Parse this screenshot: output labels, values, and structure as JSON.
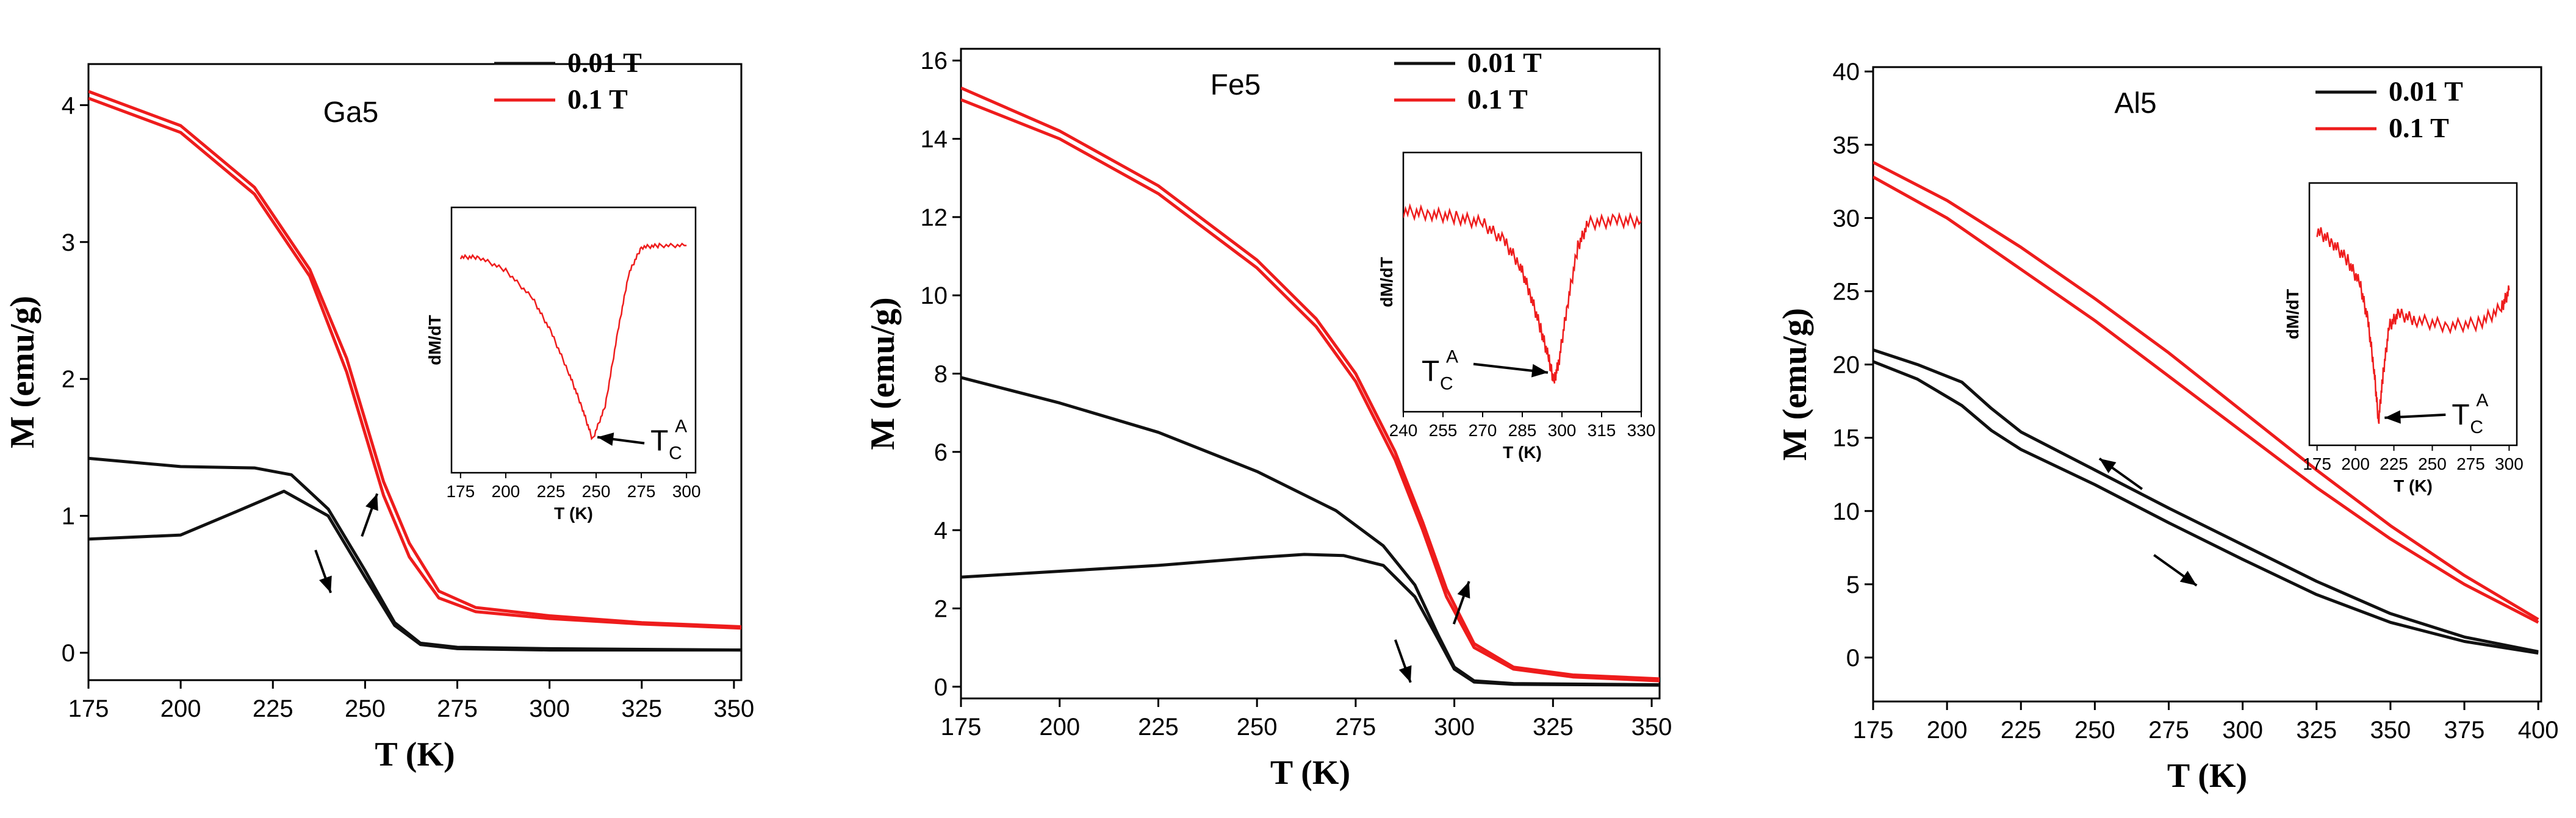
{
  "colors": {
    "low_field": "#111111",
    "high_field": "#ee1c1c",
    "axis": "#000000"
  },
  "chart_data": [
    {
      "type": "line",
      "title": "Ga5",
      "xlabel": "T (K)",
      "ylabel": "M (emu/g)",
      "xlim": [
        175,
        352
      ],
      "ylim": [
        -0.2,
        4.3
      ],
      "xticks": [
        175,
        200,
        225,
        250,
        275,
        300,
        325,
        350
      ],
      "yticks": [
        0,
        1,
        2,
        3,
        4
      ],
      "legend": {
        "position": "top-right",
        "entries": [
          "0.01 T",
          "0.1 T"
        ]
      },
      "series": [
        {
          "name": "0.1 T",
          "field": "high",
          "x": [
            175,
            200,
            220,
            235,
            245,
            255,
            262,
            270,
            280,
            300,
            325,
            352
          ],
          "y": [
            4.1,
            3.85,
            3.4,
            2.8,
            2.15,
            1.25,
            0.8,
            0.45,
            0.33,
            0.27,
            0.22,
            0.19
          ]
        },
        {
          "name": "0.1 T",
          "field": "high",
          "x": [
            175,
            200,
            220,
            235,
            245,
            255,
            262,
            270,
            280,
            300,
            325,
            352
          ],
          "y": [
            4.05,
            3.8,
            3.35,
            2.75,
            2.05,
            1.15,
            0.7,
            0.4,
            0.3,
            0.25,
            0.21,
            0.18
          ]
        },
        {
          "name": "0.01 T",
          "field": "low",
          "x": [
            175,
            200,
            220,
            230,
            240,
            250,
            258,
            265,
            275,
            300,
            352
          ],
          "y": [
            1.42,
            1.36,
            1.35,
            1.3,
            1.05,
            0.6,
            0.22,
            0.07,
            0.04,
            0.03,
            0.02
          ]
        },
        {
          "name": "0.01 T",
          "field": "low",
          "x": [
            175,
            200,
            215,
            228,
            240,
            250,
            258,
            265,
            275,
            300,
            352
          ],
          "y": [
            0.83,
            0.86,
            1.03,
            1.18,
            1.0,
            0.55,
            0.2,
            0.06,
            0.03,
            0.02,
            0.02
          ]
        }
      ],
      "annotations": [
        {
          "type": "arrow",
          "direction": "up",
          "at_x": 245,
          "at_y": 0.85
        },
        {
          "type": "arrow",
          "direction": "down",
          "at_x": 244,
          "at_y": 0.75
        }
      ],
      "inset": {
        "ylabel": "dM/dT",
        "xlabel": "T (K)",
        "xlim": [
          170,
          305
        ],
        "ylim": [
          -1.4,
          0.2
        ],
        "xticks": [
          175,
          200,
          225,
          250,
          275,
          300
        ],
        "marker_label": "T",
        "marker_sub": "C",
        "marker_sup": "A",
        "series": [
          {
            "name": "dM/dT",
            "x": [
              175,
              185,
              200,
              215,
              225,
              235,
              242,
              248,
              255,
              262,
              268,
              275,
              285,
              300
            ],
            "y": [
              -0.1,
              -0.1,
              -0.18,
              -0.35,
              -0.55,
              -0.8,
              -1.0,
              -1.2,
              -1.0,
              -0.55,
              -0.2,
              -0.04,
              -0.03,
              -0.03
            ]
          }
        ]
      }
    },
    {
      "type": "line",
      "title": "Fe5",
      "xlabel": "T (K)",
      "ylabel": "M (emu/g)",
      "xlim": [
        175,
        352
      ],
      "ylim": [
        -0.3,
        16.3
      ],
      "xticks": [
        175,
        200,
        225,
        250,
        275,
        300,
        325,
        350
      ],
      "yticks": [
        0,
        2,
        4,
        6,
        8,
        10,
        12,
        14,
        16
      ],
      "legend": {
        "position": "top-right",
        "entries": [
          "0.01 T",
          "0.1 T"
        ]
      },
      "series": [
        {
          "name": "0.1 T",
          "field": "high",
          "x": [
            175,
            200,
            225,
            250,
            265,
            275,
            285,
            292,
            298,
            305,
            315,
            330,
            352
          ],
          "y": [
            15.3,
            14.2,
            12.8,
            10.9,
            9.4,
            8.0,
            6.0,
            4.2,
            2.5,
            1.1,
            0.5,
            0.3,
            0.2
          ]
        },
        {
          "name": "0.1 T",
          "field": "high",
          "x": [
            175,
            200,
            225,
            250,
            265,
            275,
            285,
            292,
            298,
            305,
            315,
            330,
            352
          ],
          "y": [
            15.0,
            14.0,
            12.6,
            10.7,
            9.2,
            7.8,
            5.8,
            4.0,
            2.3,
            1.0,
            0.45,
            0.25,
            0.15
          ]
        },
        {
          "name": "0.01 T",
          "field": "low",
          "x": [
            175,
            200,
            225,
            250,
            270,
            282,
            290,
            296,
            300,
            305,
            315,
            352
          ],
          "y": [
            7.9,
            7.25,
            6.5,
            5.5,
            4.5,
            3.6,
            2.6,
            1.3,
            0.5,
            0.15,
            0.08,
            0.05
          ]
        },
        {
          "name": "0.01 T",
          "field": "low",
          "x": [
            175,
            200,
            225,
            250,
            262,
            272,
            282,
            290,
            296,
            300,
            305,
            315,
            352
          ],
          "y": [
            2.8,
            2.95,
            3.1,
            3.3,
            3.38,
            3.35,
            3.1,
            2.3,
            1.2,
            0.45,
            0.12,
            0.06,
            0.04
          ]
        }
      ],
      "annotations": [
        {
          "type": "arrow",
          "direction": "up",
          "at_x": 296,
          "at_y": 1.6
        },
        {
          "type": "arrow",
          "direction": "down",
          "at_x": 292,
          "at_y": 1.2
        }
      ],
      "inset": {
        "ylabel": "dM/dT",
        "xlabel": "T (K)",
        "xlim": [
          240,
          330
        ],
        "ylim": [
          -1.6,
          0.6
        ],
        "xticks": [
          240,
          255,
          270,
          285,
          300,
          315,
          330
        ],
        "marker_label": "T",
        "marker_sub": "C",
        "marker_sup": "A",
        "series": [
          {
            "name": "dM/dT",
            "x": [
              240,
              250,
              260,
              270,
              278,
              284,
              288,
              292,
              295,
              297,
              299,
              302,
              306,
              310,
              320,
              330
            ],
            "y": [
              0.1,
              0.08,
              0.05,
              0.0,
              -0.15,
              -0.35,
              -0.6,
              -0.9,
              -1.15,
              -1.35,
              -1.15,
              -0.7,
              -0.2,
              0.0,
              0.02,
              0.02
            ]
          }
        ]
      }
    },
    {
      "type": "line",
      "title": "Al5",
      "xlabel": "T (K)",
      "ylabel": "M (emu/g)",
      "xlim": [
        175,
        401
      ],
      "ylim": [
        -3,
        40.3
      ],
      "xticks": [
        175,
        200,
        225,
        250,
        275,
        300,
        325,
        350,
        375,
        400
      ],
      "yticks": [
        0,
        5,
        10,
        15,
        20,
        25,
        30,
        35,
        40
      ],
      "legend": {
        "position": "top-right",
        "entries": [
          "0.01 T",
          "0.1 T"
        ]
      },
      "series": [
        {
          "name": "0.1 T",
          "field": "high",
          "x": [
            175,
            200,
            225,
            250,
            275,
            300,
            325,
            350,
            375,
            400
          ],
          "y": [
            33.8,
            31.2,
            28.0,
            24.5,
            20.8,
            16.8,
            12.8,
            9.0,
            5.6,
            2.6
          ]
        },
        {
          "name": "0.1 T",
          "field": "high",
          "x": [
            175,
            200,
            225,
            250,
            275,
            300,
            325,
            350,
            375,
            400
          ],
          "y": [
            32.8,
            30.0,
            26.5,
            23.0,
            19.2,
            15.4,
            11.6,
            8.1,
            5.0,
            2.4
          ]
        },
        {
          "name": "0.01 T",
          "field": "low",
          "x": [
            175,
            190,
            205,
            215,
            225,
            250,
            275,
            300,
            325,
            350,
            375,
            400
          ],
          "y": [
            21.0,
            20.0,
            18.8,
            17.0,
            15.4,
            12.8,
            10.2,
            7.7,
            5.2,
            3.0,
            1.4,
            0.4
          ]
        },
        {
          "name": "0.01 T",
          "field": "low",
          "x": [
            175,
            190,
            205,
            215,
            225,
            250,
            275,
            300,
            325,
            350,
            375,
            400
          ],
          "y": [
            20.2,
            19.0,
            17.2,
            15.5,
            14.2,
            11.8,
            9.2,
            6.7,
            4.3,
            2.4,
            1.1,
            0.3
          ]
        }
      ],
      "annotations": [
        {
          "type": "arrow",
          "direction": "up-left",
          "at_x": 266,
          "at_y": 11.5
        },
        {
          "type": "arrow",
          "direction": "down-right",
          "at_x": 270,
          "at_y": 7
        }
      ],
      "inset": {
        "ylabel": "dM/dT",
        "xlabel": "T (K)",
        "xlim": [
          170,
          305
        ],
        "ylim": [
          -1.6,
          0.6
        ],
        "xticks": [
          175,
          200,
          225,
          250,
          275,
          300
        ],
        "marker_label": "T",
        "marker_sub": "C",
        "marker_sup": "A",
        "series": [
          {
            "name": "dM/dT",
            "x": [
              175,
              185,
              195,
              203,
              208,
              212,
              215,
              218,
              222,
              228,
              240,
              260,
              280,
              295,
              300
            ],
            "y": [
              0.2,
              0.1,
              -0.05,
              -0.25,
              -0.55,
              -0.95,
              -1.4,
              -1.0,
              -0.6,
              -0.5,
              -0.55,
              -0.6,
              -0.58,
              -0.45,
              -0.3
            ]
          }
        ]
      }
    }
  ]
}
